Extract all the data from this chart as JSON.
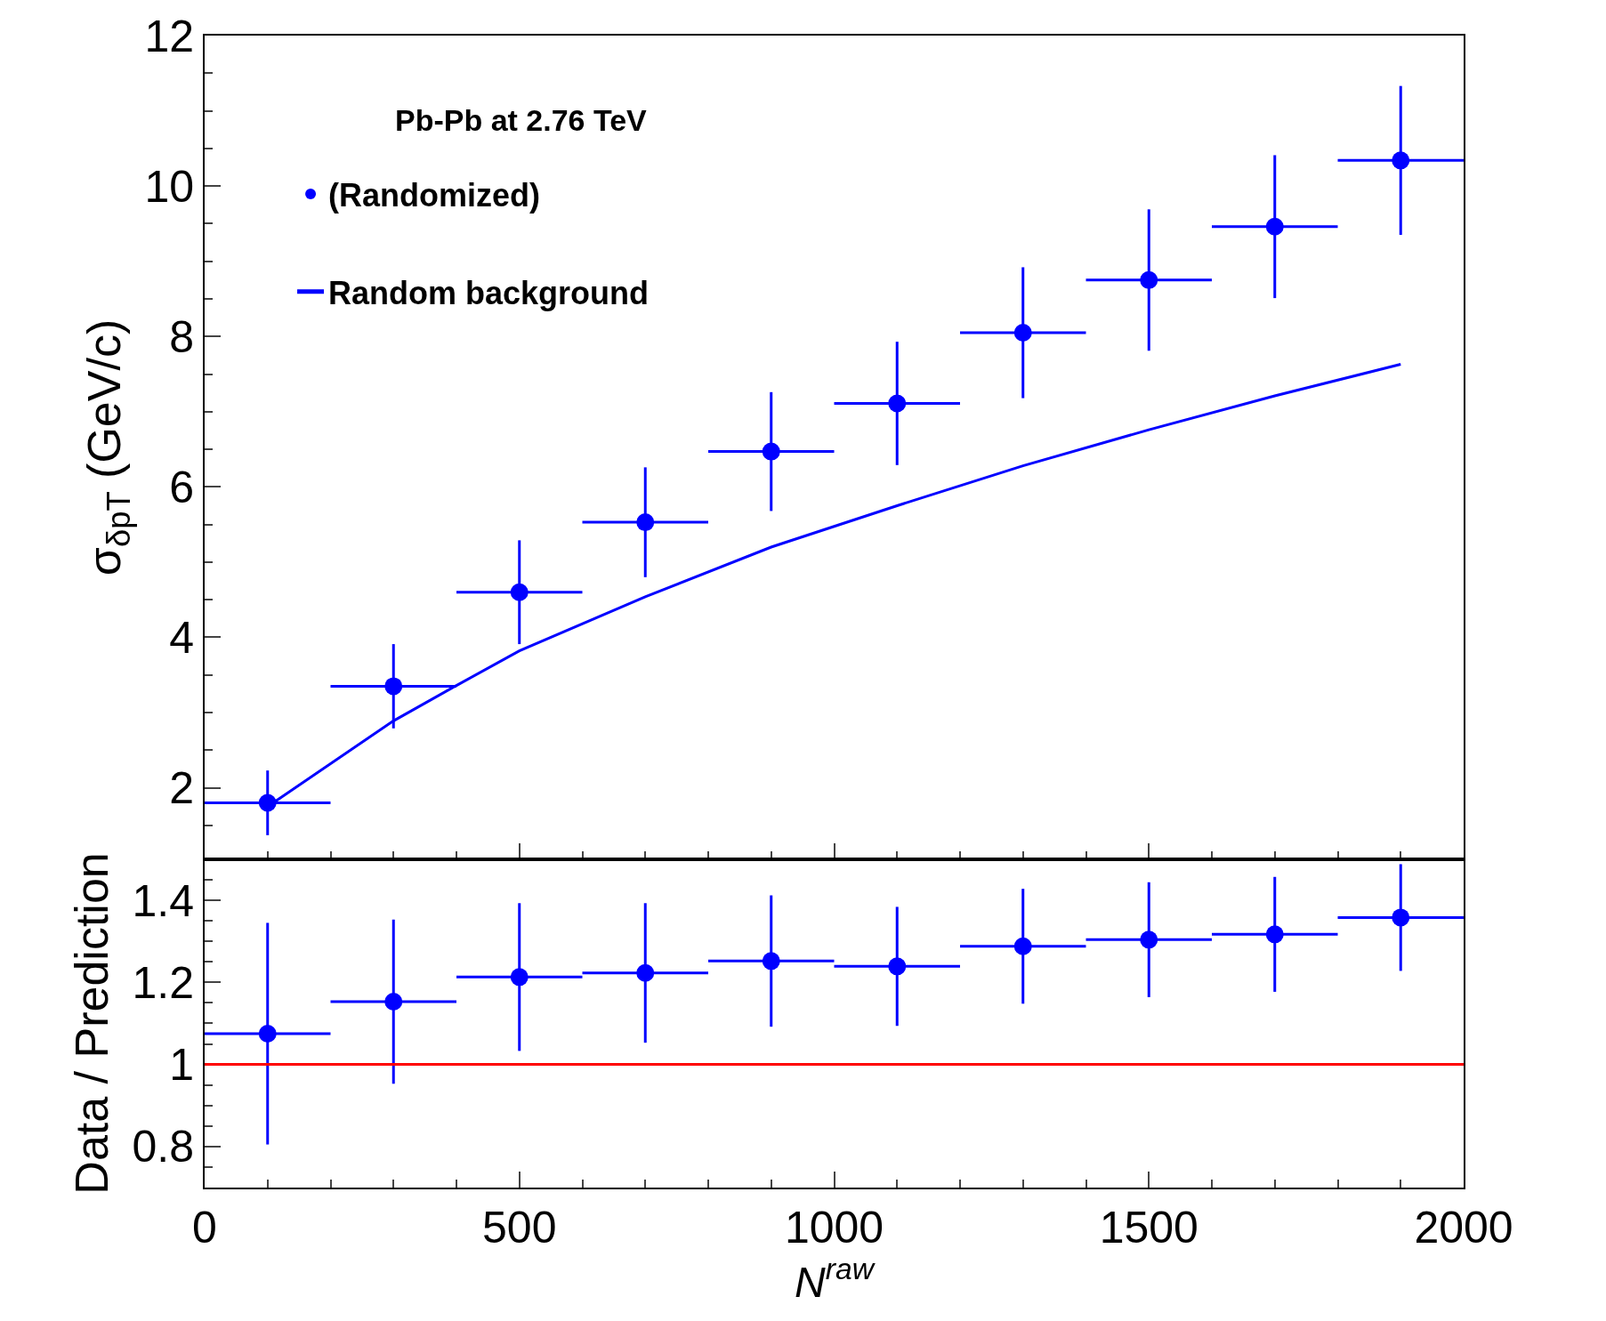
{
  "chart_data": [
    {
      "type": "scatter",
      "ylabel": "σ$_{δpT}$ (GeV/c)",
      "annotations": [
        "Pb-Pb at 2.76 TeV"
      ],
      "xlim": [
        0,
        2000
      ],
      "xticks": [
        0,
        500,
        1000,
        1500,
        2000
      ],
      "ylim": [
        1.05,
        12
      ],
      "yticks": [
        2,
        4,
        6,
        8,
        10,
        12
      ],
      "tick_labels": "y",
      "grid": false,
      "legend": "top left",
      "marker": "circle",
      "series": [
        {
          "name": "(Randomized)",
          "color": "#0000ff",
          "x": [
            100,
            300,
            500,
            700,
            900,
            1100,
            1300,
            1500,
            1700,
            1900
          ],
          "values": [
            1.8,
            3.35,
            4.6,
            5.53,
            6.47,
            7.11,
            8.05,
            8.75,
            9.46,
            10.34
          ],
          "errors": [
            0.43,
            0.56,
            0.69,
            0.73,
            0.79,
            0.82,
            0.87,
            0.94,
            0.95,
            0.99
          ],
          "xerrors": [
            100,
            100,
            100,
            100,
            100,
            100,
            100,
            100,
            100,
            100
          ]
        },
        {
          "name": "Random background",
          "type": "line",
          "color": "#0000ff",
          "marker": "none",
          "x": [
            100,
            300,
            400,
            500,
            700,
            900,
            1100,
            1300,
            1500,
            1700,
            1900
          ],
          "values": [
            1.75,
            2.89,
            3.36,
            3.82,
            4.54,
            5.2,
            5.75,
            6.28,
            6.76,
            7.21,
            7.63
          ]
        }
      ]
    },
    {
      "type": "scatter",
      "xlabel": "N$^{raw}$",
      "ylabel": "Data / Prediction",
      "xlim": [
        0,
        2000
      ],
      "xticks": [
        0,
        500,
        1000,
        1500,
        2000
      ],
      "ylim": [
        0.7,
        1.5
      ],
      "yticks": [
        0.8,
        1,
        1.2,
        1.4
      ],
      "grid": false,
      "legend": false,
      "marker": "circle",
      "ref_lines": [
        {
          "axis": "y",
          "value": 1,
          "label": null,
          "color": "#ff0000"
        }
      ],
      "series": [
        {
          "color": "#0000ff",
          "x": [
            100,
            300,
            500,
            700,
            900,
            1100,
            1300,
            1500,
            1700,
            1900
          ],
          "values": [
            1.075,
            1.153,
            1.213,
            1.223,
            1.252,
            1.239,
            1.288,
            1.304,
            1.317,
            1.358
          ],
          "errors": [
            0.27,
            0.2,
            0.18,
            0.17,
            0.16,
            0.145,
            0.14,
            0.14,
            0.14,
            0.13
          ],
          "xerrors": [
            100,
            100,
            100,
            100,
            100,
            100,
            100,
            100,
            100,
            100
          ]
        }
      ]
    }
  ]
}
